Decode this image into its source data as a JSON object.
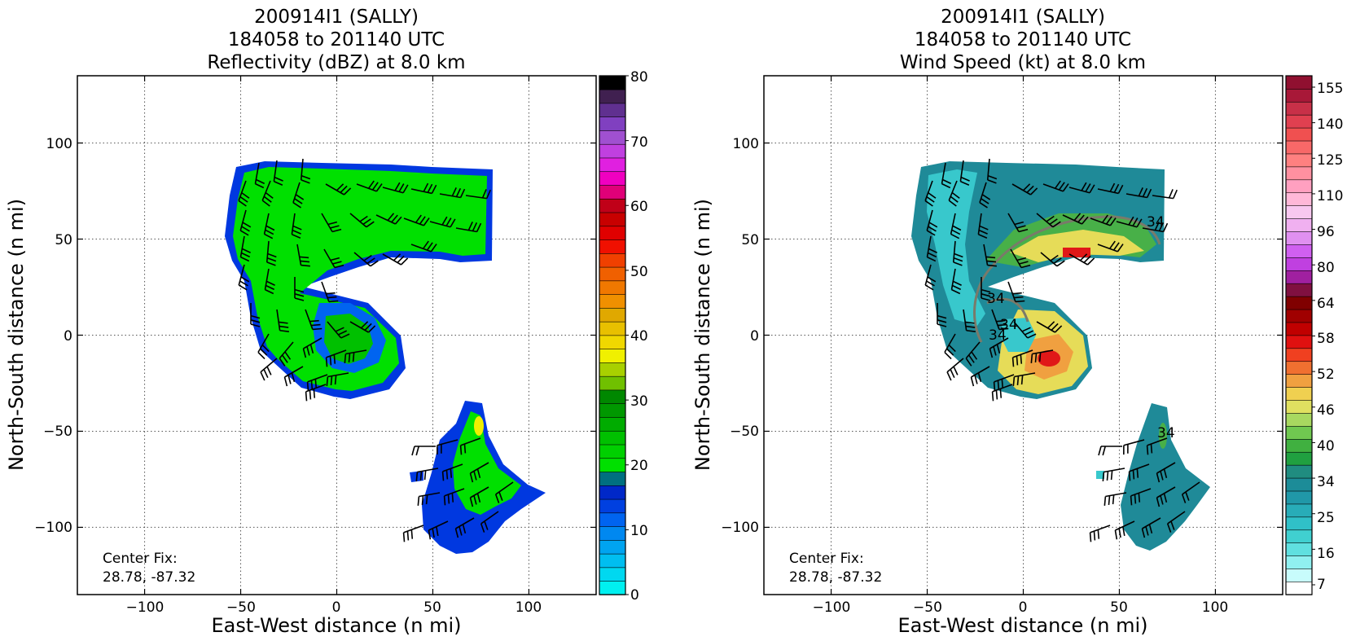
{
  "chart_data": [
    {
      "type": "heatmap",
      "title_lines": [
        "200914I1 (SALLY)",
        "184058 to 201140 UTC",
        "Reflectivity (dBZ) at 8.0 km"
      ],
      "xlabel": "East-West distance (n mi)",
      "ylabel": "North-South distance (n mi)",
      "xlim": [
        -135,
        135
      ],
      "ylim": [
        -135,
        135
      ],
      "xticks": [
        "−100",
        "−50",
        "0",
        "50",
        "100"
      ],
      "xtick_values": [
        -100,
        -50,
        0,
        50,
        100
      ],
      "yticks": [
        "100",
        "50",
        "0",
        "−50",
        "−100"
      ],
      "ytick_values": [
        100,
        50,
        0,
        -50,
        -100
      ],
      "grid": true,
      "annotation": [
        "Center Fix:",
        "28.78, -87.32"
      ],
      "colorbar": {
        "min": 0,
        "max": 80,
        "tick_labels": [
          "80",
          "70",
          "60",
          "50",
          "40",
          "30",
          "20",
          "10",
          "0"
        ],
        "tick_values": [
          80,
          70,
          60,
          50,
          40,
          30,
          20,
          10,
          0
        ],
        "colors": [
          "#00f0f0",
          "#00d8f0",
          "#00bef0",
          "#00a4f0",
          "#0088f0",
          "#0064f0",
          "#0040e0",
          "#0028c8",
          "#007080",
          "#00e000",
          "#00d000",
          "#00c000",
          "#00ac00",
          "#009800",
          "#008800",
          "#70c000",
          "#a8d000",
          "#f0f000",
          "#f0d800",
          "#e8c000",
          "#e0a800",
          "#f09000",
          "#f07800",
          "#f06000",
          "#f04000",
          "#f01000",
          "#e00000",
          "#c80000",
          "#c00018",
          "#e00078",
          "#f000c0",
          "#e020e0",
          "#c040e0",
          "#a050d0",
          "#8040c0",
          "#603090",
          "#402050",
          "#000000"
        ]
      },
      "field_colors": {
        "core": "#00e000",
        "edge": "#0038e0",
        "inner": "#0064f0",
        "yellow": "#f0f000"
      }
    },
    {
      "type": "heatmap",
      "title_lines": [
        "200914I1 (SALLY)",
        "184058 to 201140 UTC",
        "Wind Speed (kt) at 8.0 km"
      ],
      "xlabel": "East-West distance (n mi)",
      "ylabel": "North-South distance (n mi)",
      "xlim": [
        -135,
        135
      ],
      "ylim": [
        -135,
        135
      ],
      "xticks": [
        "−100",
        "−50",
        "0",
        "50",
        "100"
      ],
      "xtick_values": [
        -100,
        -50,
        0,
        50,
        100
      ],
      "yticks": [
        "100",
        "50",
        "0",
        "−50",
        "−100"
      ],
      "ytick_values": [
        100,
        50,
        0,
        -50,
        -100
      ],
      "grid": true,
      "annotation": [
        "Center Fix:",
        "28.78, -87.32"
      ],
      "contour_labels": [
        "34",
        "34",
        "34",
        "34",
        "34"
      ],
      "colorbar": {
        "tick_labels": [
          "155",
          "140",
          "125",
          "110",
          "96",
          "80",
          "64",
          "58",
          "52",
          "46",
          "40",
          "34",
          "25",
          "16",
          "7"
        ],
        "colors": [
          "#ffffff",
          "#c8fcfc",
          "#90f0f0",
          "#60e0e0",
          "#40d0d0",
          "#30c0c8",
          "#28acb8",
          "#2098a8",
          "#1c8c98",
          "#208c80",
          "#20a040",
          "#40b040",
          "#70c850",
          "#a8d860",
          "#e0e060",
          "#f0d050",
          "#f0a040",
          "#f07030",
          "#f04020",
          "#e01010",
          "#c00000",
          "#a00000",
          "#800000",
          "#801040",
          "#a020a0",
          "#c040e0",
          "#d060f0",
          "#e090f0",
          "#f0b0f0",
          "#f8c8f0",
          "#ffb8d8",
          "#ffa0c0",
          "#ff90a0",
          "#ff8080",
          "#f86868",
          "#f05050",
          "#e04050",
          "#c83048",
          "#a81838",
          "#901030"
        ]
      },
      "field_colors": {
        "core": "#1f8a98",
        "light": "#38c8cc",
        "green": "#48b048",
        "yellow": "#e6dc58",
        "orange": "#f0a040",
        "red": "#e01818"
      }
    }
  ]
}
